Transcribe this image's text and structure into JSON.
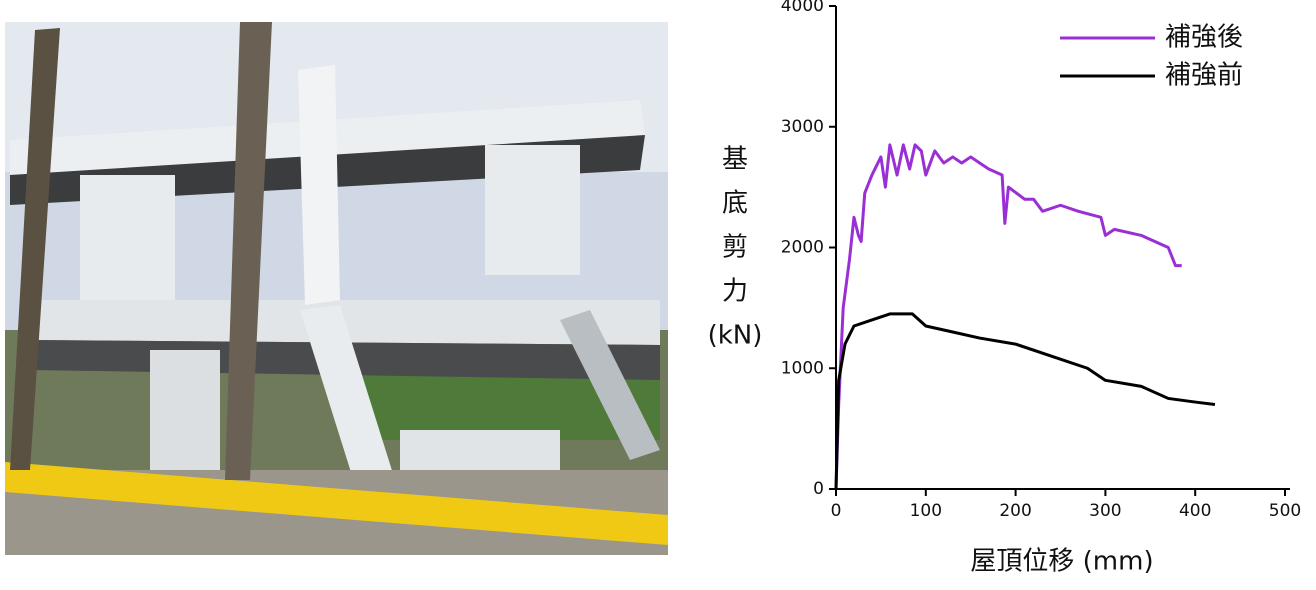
{
  "chart_data": {
    "type": "line",
    "x_label": "屋頂位移 (mm)",
    "y_label": [
      "基",
      "底",
      "剪",
      "力",
      "(kN)"
    ],
    "xlim": [
      0,
      500
    ],
    "xticks": [
      0,
      100,
      200,
      300,
      400,
      500
    ],
    "ylim": [
      0,
      4000
    ],
    "yticks": [
      0,
      1000,
      2000,
      3000,
      4000
    ],
    "legend": "upper right",
    "series": [
      {
        "name": "補強後",
        "color": "#9b2fd6",
        "x": [
          0,
          3,
          8,
          15,
          20,
          25,
          28,
          32,
          40,
          50,
          55,
          60,
          68,
          75,
          82,
          88,
          95,
          100,
          110,
          120,
          130,
          140,
          150,
          160,
          170,
          185,
          188,
          192,
          210,
          220,
          230,
          250,
          270,
          295,
          300,
          310,
          340,
          370,
          378,
          385
        ],
        "values": [
          0,
          700,
          1500,
          1900,
          2250,
          2100,
          2050,
          2450,
          2600,
          2750,
          2500,
          2850,
          2600,
          2850,
          2650,
          2850,
          2800,
          2600,
          2800,
          2700,
          2750,
          2700,
          2750,
          2700,
          2650,
          2600,
          2200,
          2500,
          2400,
          2400,
          2300,
          2350,
          2300,
          2250,
          2100,
          2150,
          2100,
          2000,
          1850,
          1850
        ]
      },
      {
        "name": "補強前",
        "color": "#000000",
        "x": [
          0,
          3,
          10,
          20,
          40,
          60,
          85,
          100,
          130,
          160,
          200,
          240,
          280,
          300,
          340,
          370,
          400,
          422
        ],
        "values": [
          0,
          900,
          1200,
          1350,
          1400,
          1450,
          1450,
          1350,
          1300,
          1250,
          1200,
          1100,
          1000,
          900,
          850,
          750,
          720,
          700
        ]
      }
    ]
  }
}
